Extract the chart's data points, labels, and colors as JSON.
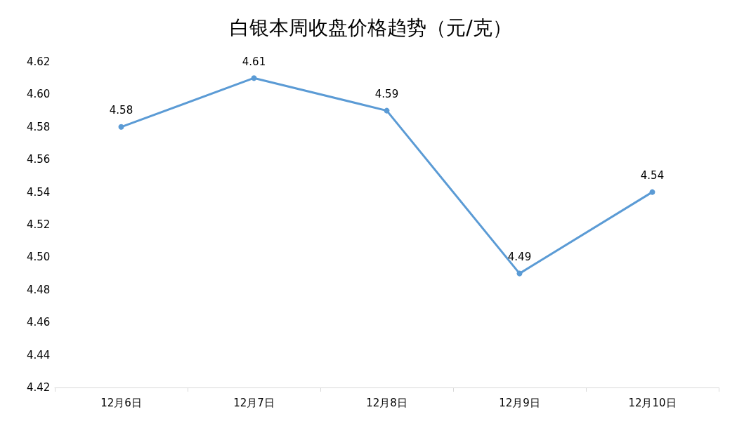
{
  "chart_data": {
    "type": "line",
    "title": "白银本周收盘价格趋势（元/克）",
    "categories": [
      "12月6日",
      "12月7日",
      "12月8日",
      "12月9日",
      "12月10日"
    ],
    "series": [
      {
        "color": "#5b9bd5",
        "values": [
          4.58,
          4.61,
          4.59,
          4.49,
          4.54
        ]
      }
    ],
    "ylim": [
      4.42,
      4.62
    ],
    "yticks": [
      4.42,
      4.44,
      4.46,
      4.48,
      {
        "value": 4.5,
        "label": "4.50"
      },
      4.52,
      4.54,
      4.56,
      4.58,
      {
        "value": 4.6,
        "label": "4.60"
      },
      4.62
    ],
    "marker": "circle",
    "line_style": "solid",
    "data_labels": true
  }
}
